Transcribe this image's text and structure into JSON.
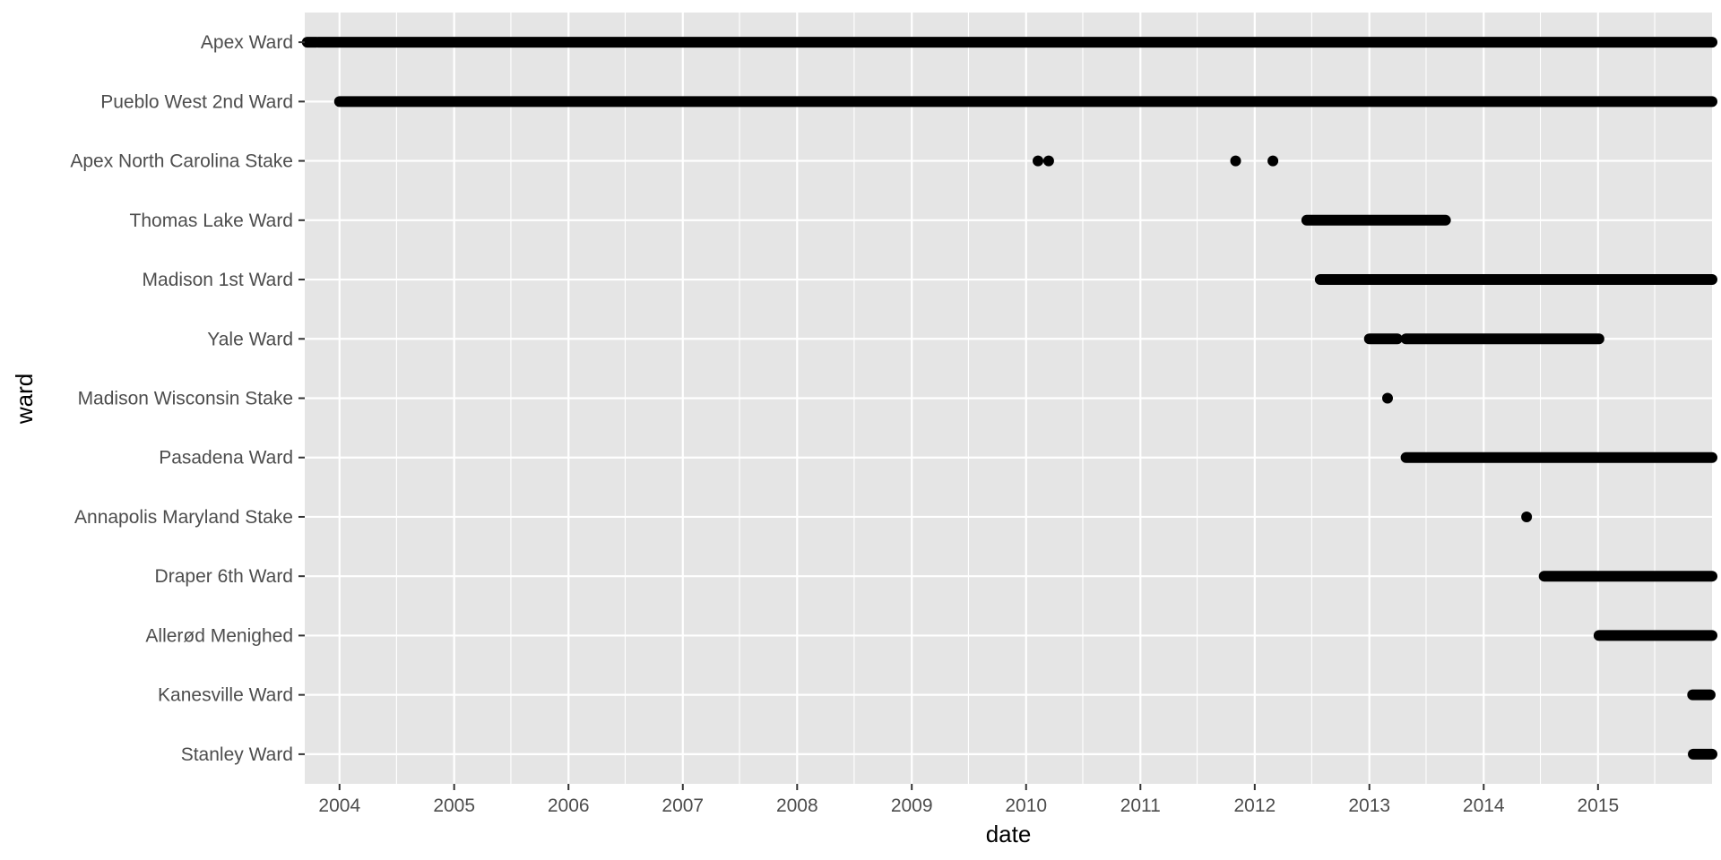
{
  "chart_data": {
    "type": "scatter",
    "xlabel": "date",
    "ylabel": "ward",
    "x_tick_labels": [
      "2004",
      "2005",
      "2006",
      "2007",
      "2008",
      "2009",
      "2010",
      "2011",
      "2012",
      "2013",
      "2014",
      "2015"
    ],
    "x_range": [
      "2003-09-12",
      "2015-12-31"
    ],
    "x_scale": "date",
    "grid": true,
    "legend": "none",
    "point_color": "#000000",
    "panel_color": "#e5e5e5",
    "grid_color": "#ffffff",
    "categories": [
      "Apex Ward",
      "Pueblo West 2nd Ward",
      "Apex North Carolina Stake",
      "Thomas Lake Ward",
      "Madison 1st Ward",
      "Yale Ward",
      "Madison Wisconsin Stake",
      "Pasadena Ward",
      "Annapolis Maryland Stake",
      "Draper 6th Ward",
      "Allerød Menighed",
      "Kanesville Ward",
      "Stanley Ward"
    ],
    "series": [
      {
        "ward": "Apex Ward",
        "ranges": [
          [
            "2003-09-20",
            "2003-10-18"
          ],
          [
            "2003-10-25",
            "2015-12-31"
          ]
        ],
        "points": []
      },
      {
        "ward": "Pueblo West 2nd Ward",
        "ranges": [
          [
            "2004-01-01",
            "2015-12-31"
          ]
        ],
        "points": []
      },
      {
        "ward": "Apex North Carolina Stake",
        "ranges": [],
        "points": [
          "2010-02-08",
          "2010-03-14",
          "2011-11-01",
          "2012-02-28"
        ]
      },
      {
        "ward": "Thomas Lake Ward",
        "ranges": [
          [
            "2012-06-15",
            "2013-09-01"
          ]
        ],
        "points": []
      },
      {
        "ward": "Madison 1st Ward",
        "ranges": [
          [
            "2012-07-28",
            "2015-12-31"
          ]
        ],
        "points": []
      },
      {
        "ward": "Yale Ward",
        "ranges": [
          [
            "2013-01-01",
            "2013-03-31"
          ],
          [
            "2013-04-28",
            "2015-01-04"
          ]
        ],
        "points": []
      },
      {
        "ward": "Madison Wisconsin Stake",
        "ranges": [],
        "points": [
          "2013-02-28"
        ]
      },
      {
        "ward": "Pasadena Ward",
        "ranges": [
          [
            "2013-04-28",
            "2015-12-31"
          ]
        ],
        "points": []
      },
      {
        "ward": "Annapolis Maryland Stake",
        "ranges": [],
        "points": [
          "2014-05-18"
        ]
      },
      {
        "ward": "Draper 6th Ward",
        "ranges": [
          [
            "2014-07-13",
            "2015-12-31"
          ]
        ],
        "points": []
      },
      {
        "ward": "Allerød Menighed",
        "ranges": [
          [
            "2015-01-04",
            "2015-12-31"
          ]
        ],
        "points": []
      },
      {
        "ward": "Kanesville Ward",
        "ranges": [
          [
            "2015-10-30",
            "2015-12-25"
          ]
        ],
        "points": []
      },
      {
        "ward": "Stanley Ward",
        "ranges": [
          [
            "2015-11-01",
            "2015-12-31"
          ]
        ],
        "points": []
      }
    ]
  }
}
